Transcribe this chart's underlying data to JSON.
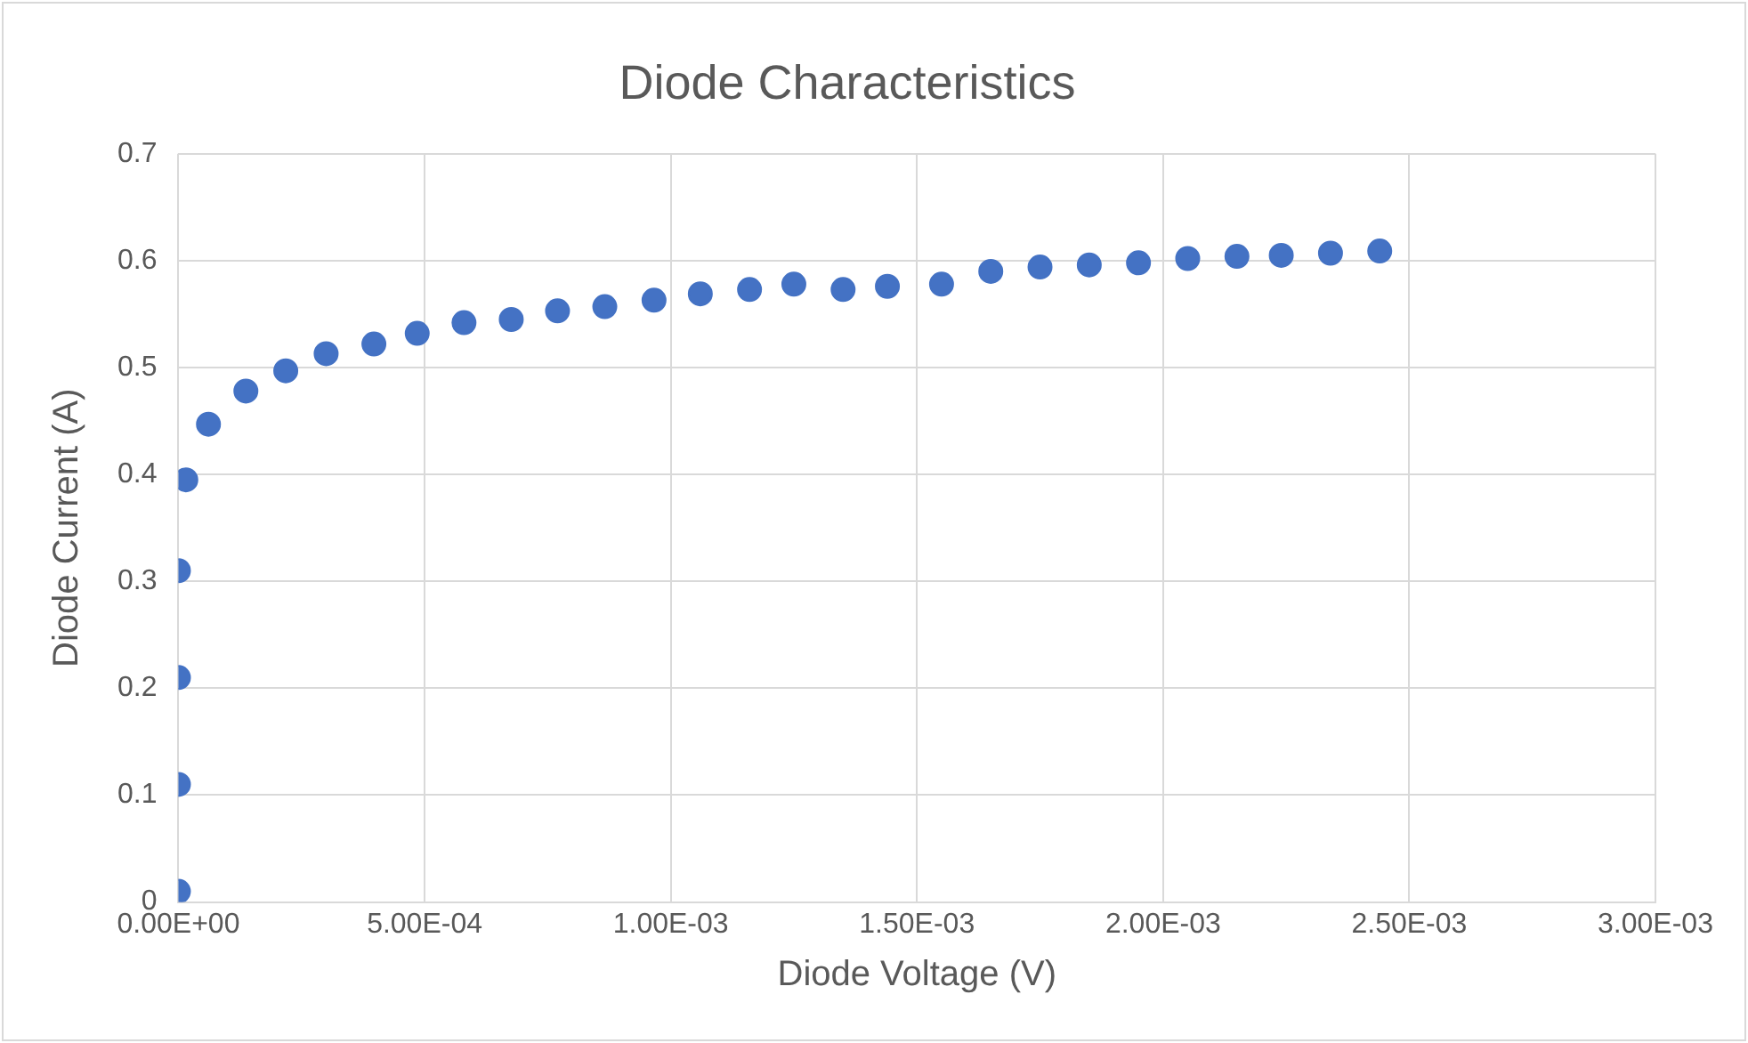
{
  "chart_data": {
    "type": "scatter",
    "title": "Diode Characteristics",
    "xlabel": "Diode Voltage (V)",
    "ylabel": "Diode Current (A)",
    "x": [
      0,
      0,
      0,
      0,
      1.5e-05,
      6.1e-05,
      0.000137,
      0.000218,
      0.0003,
      0.000397,
      0.000485,
      0.00058,
      0.000676,
      0.00077,
      0.000866,
      0.000966,
      0.00106,
      0.00116,
      0.00125,
      0.00135,
      0.00144,
      0.00155,
      0.00165,
      0.00175,
      0.00185,
      0.00195,
      0.00205,
      0.00215,
      0.00224,
      0.00234,
      0.00244
    ],
    "series": [
      {
        "color": "#4472c4",
        "values": [
          0.01,
          0.11,
          0.21,
          0.31,
          0.395,
          0.447,
          0.478,
          0.497,
          0.513,
          0.522,
          0.532,
          0.542,
          0.545,
          0.553,
          0.557,
          0.563,
          0.569,
          0.573,
          0.578,
          0.573,
          0.576,
          0.578,
          0.59,
          0.594,
          0.596,
          0.598,
          0.602,
          0.604,
          0.605,
          0.607,
          0.609
        ]
      }
    ],
    "xlim": [
      0,
      0.003
    ],
    "xticks": [
      {
        "value": 0,
        "label": "0.00E+00"
      },
      {
        "value": 0.0005,
        "label": "5.00E-04"
      },
      {
        "value": 0.001,
        "label": "1.00E-03"
      },
      {
        "value": 0.0015,
        "label": "1.50E-03"
      },
      {
        "value": 0.002,
        "label": "2.00E-03"
      },
      {
        "value": 0.0025,
        "label": "2.50E-03"
      },
      {
        "value": 0.003,
        "label": "3.00E-03"
      }
    ],
    "ylim": [
      0,
      0.7
    ],
    "yticks": [
      0,
      0.1,
      0.2,
      0.3,
      0.4,
      0.5,
      0.6,
      0.7
    ],
    "grid": true,
    "legend": false,
    "marker": "circle"
  }
}
